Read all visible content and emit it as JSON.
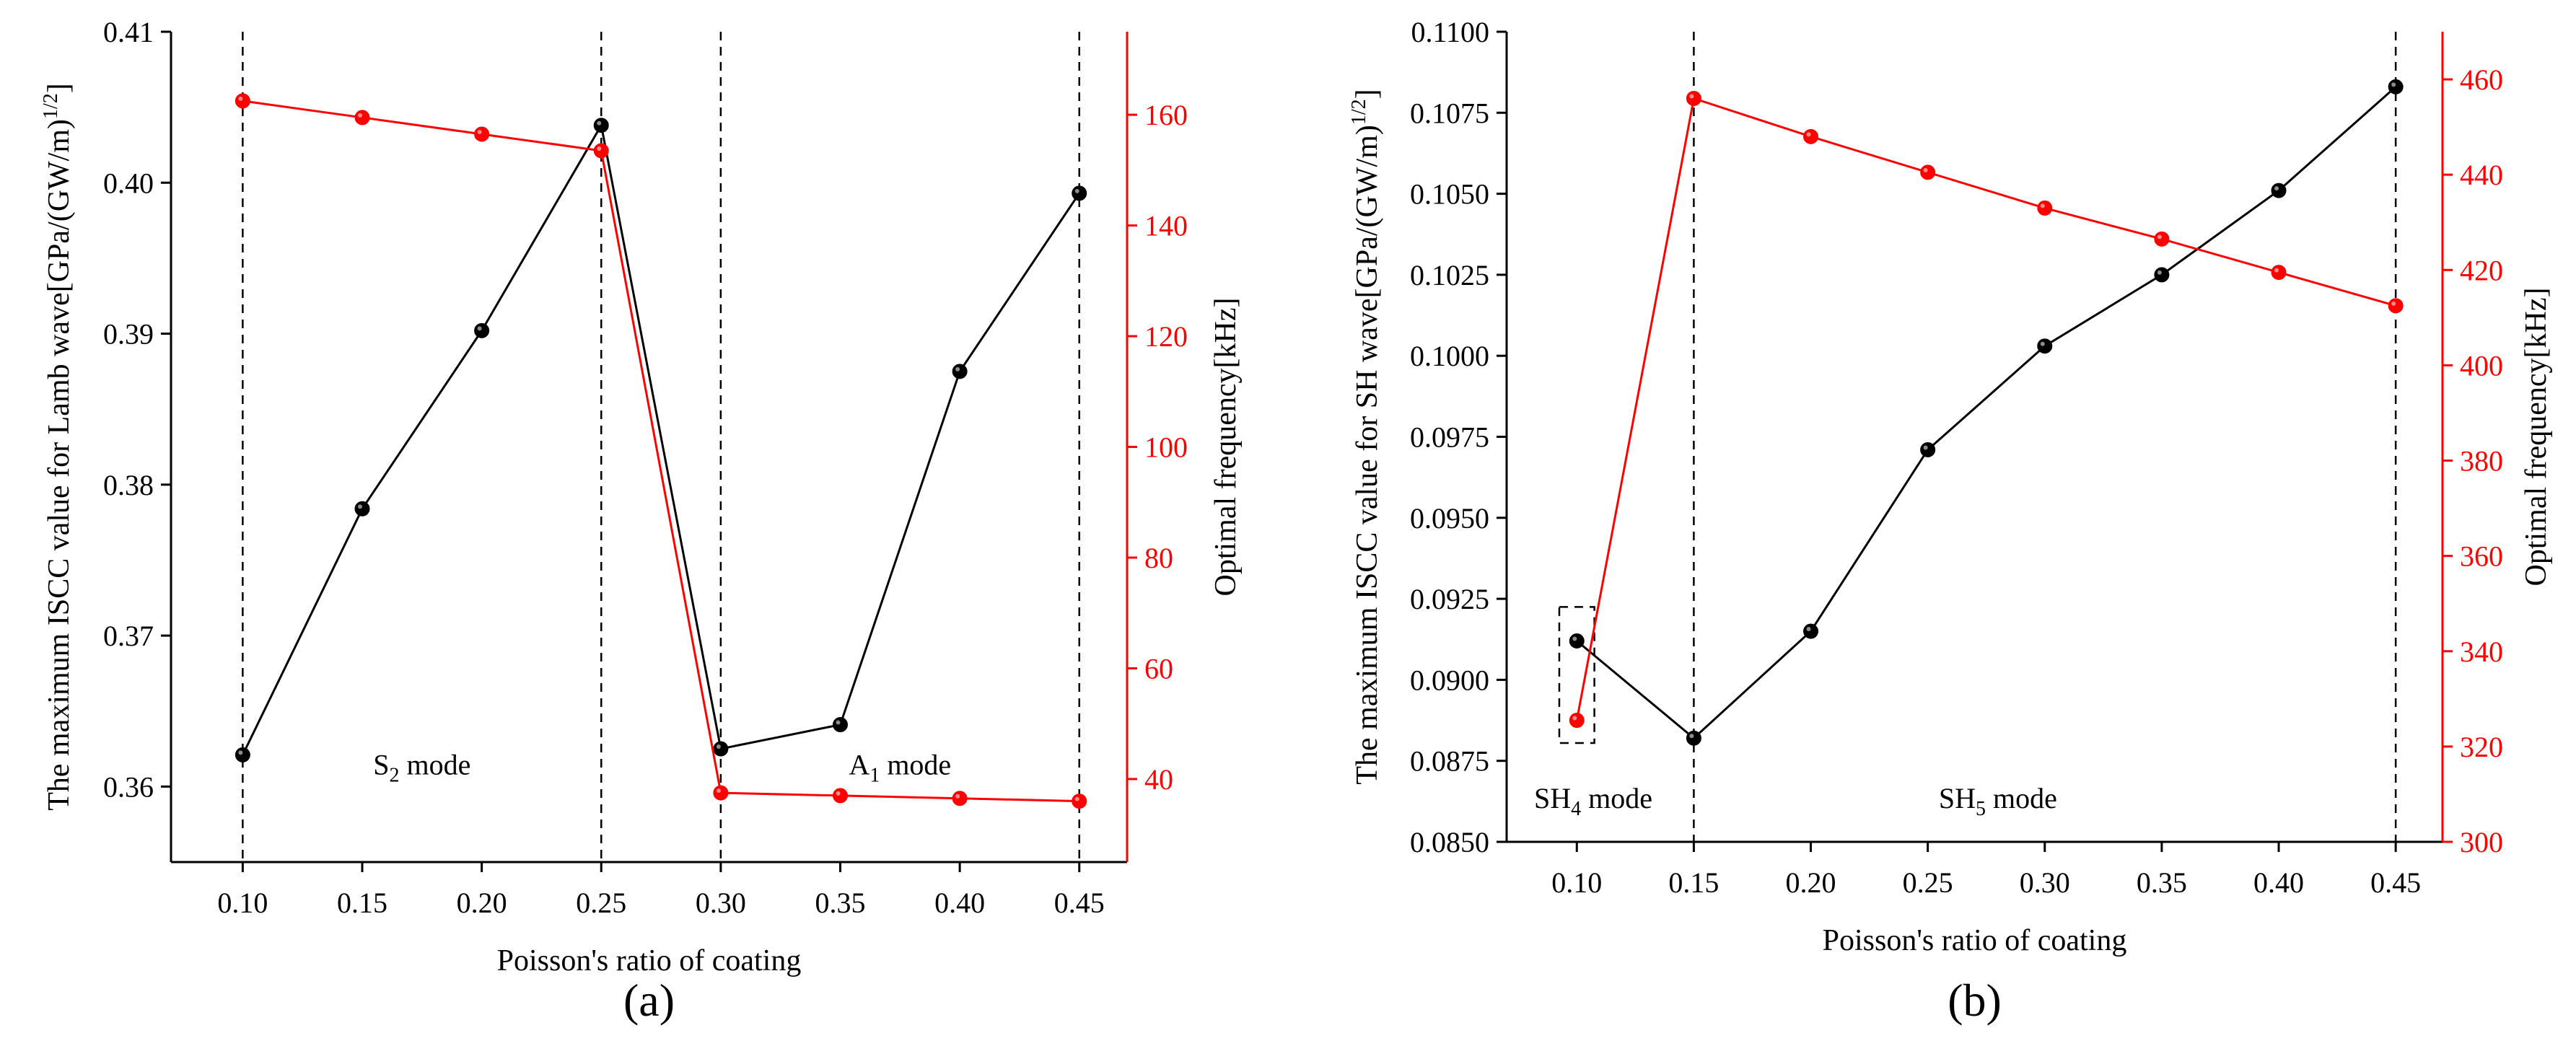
{
  "colors": {
    "primary": "#000000",
    "secondary": "#ff0000"
  },
  "chart_data": [
    {
      "type": "line",
      "panel_label": "(a)",
      "xlabel": "Poisson's ratio of coating",
      "ylabel": "The maximum ISCC value for Lamb wave[GPa/(GW/m)",
      "ylabel_sup": "1/2",
      "ylabel_end": "]",
      "y2label": "Optimal frequency[kHz]",
      "x": [
        0.1,
        0.15,
        0.2,
        0.25,
        0.3,
        0.35,
        0.4,
        0.45
      ],
      "x_ticks": [
        "0.10",
        "0.15",
        "0.20",
        "0.25",
        "0.30",
        "0.35",
        "0.40",
        "0.45"
      ],
      "xlim": [
        0.07,
        0.47
      ],
      "ylim": [
        0.355,
        0.41
      ],
      "y_ticks": [
        "0.36",
        "0.37",
        "0.38",
        "0.39",
        "0.40",
        "0.41"
      ],
      "y2lim": [
        25,
        175
      ],
      "y2_ticks": [
        "40",
        "60",
        "80",
        "100",
        "120",
        "140",
        "160"
      ],
      "series": [
        {
          "name": "Maximum ISCC value",
          "axis": "left",
          "color": "#000000",
          "values": [
            0.3621,
            0.3784,
            0.3902,
            0.4038,
            0.3625,
            0.3641,
            0.3875,
            0.3993
          ]
        },
        {
          "name": "Optimal frequency",
          "axis": "right",
          "color": "#ff0000",
          "values": [
            162.5,
            159.5,
            156.5,
            153.5,
            37.5,
            37.0,
            36.5,
            36.0
          ]
        }
      ],
      "vlines": [
        0.1,
        0.25,
        0.3,
        0.45
      ],
      "annotations": [
        {
          "x": 0.175,
          "y": 0.3608,
          "text": "S",
          "sub": "2",
          "after": " mode"
        },
        {
          "x": 0.375,
          "y": 0.3608,
          "text": "A",
          "sub": "1",
          "after": " mode"
        }
      ]
    },
    {
      "type": "line",
      "panel_label": "(b)",
      "xlabel": "Poisson's ratio of coating",
      "ylabel": "The maximum ISCC value for SH wave[GPa/(GW/m)",
      "ylabel_sup": "1/2",
      "ylabel_end": "]",
      "y2label": "Optimal frequency[kHz]",
      "x": [
        0.1,
        0.15,
        0.2,
        0.25,
        0.3,
        0.35,
        0.4,
        0.45
      ],
      "x_ticks": [
        "0.10",
        "0.15",
        "0.20",
        "0.25",
        "0.30",
        "0.35",
        "0.40",
        "0.45"
      ],
      "xlim": [
        0.07,
        0.47
      ],
      "ylim": [
        0.085,
        0.11
      ],
      "y_ticks": [
        "0.0850",
        "0.0875",
        "0.0900",
        "0.0925",
        "0.0950",
        "0.0975",
        "0.1000",
        "0.1025",
        "0.1050",
        "0.1075",
        "0.1100"
      ],
      "y2lim": [
        300,
        470
      ],
      "y2_ticks": [
        "300",
        "320",
        "340",
        "360",
        "380",
        "400",
        "420",
        "440",
        "460"
      ],
      "series": [
        {
          "name": "Maximum ISCC value",
          "axis": "left",
          "color": "#000000",
          "values": [
            0.0912,
            0.0882,
            0.0915,
            0.0971,
            0.1003,
            0.1025,
            0.1051,
            0.1083
          ]
        },
        {
          "name": "Optimal frequency",
          "axis": "right",
          "color": "#ff0000",
          "values": [
            325.5,
            456.0,
            448.0,
            440.5,
            433.0,
            426.5,
            419.5,
            412.5
          ]
        }
      ],
      "vlines": [
        0.15,
        0.45
      ],
      "highlight_box": {
        "x": [
          0.0925,
          0.1075
        ],
        "y": [
          0.08805,
          0.09225
        ]
      },
      "annotations": [
        {
          "x": 0.107,
          "y": 0.08605,
          "text": "SH",
          "sub": "4",
          "after": " mode"
        },
        {
          "x": 0.28,
          "y": 0.08605,
          "text": "SH",
          "sub": "5",
          "after": " mode"
        }
      ]
    }
  ]
}
